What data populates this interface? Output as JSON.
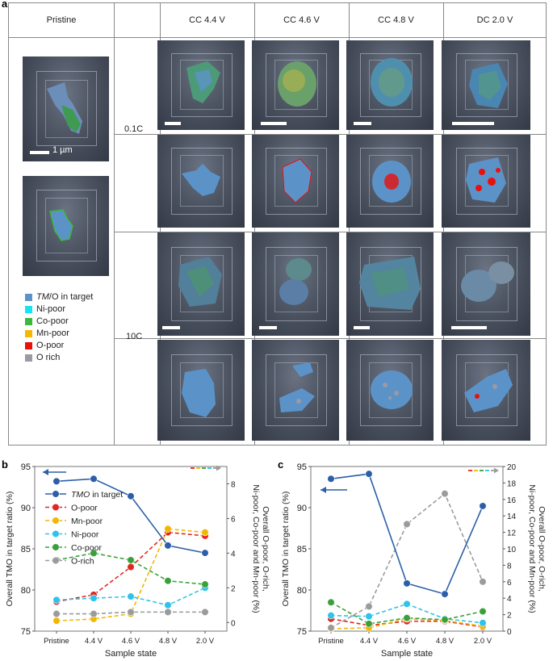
{
  "panel_a": {
    "letter": "a",
    "columns": [
      "Pristine",
      "CC 4.4 V",
      "CC 4.6 V",
      "CC 4.8 V",
      "DC 2.0 V"
    ],
    "rows": [
      "0.1C",
      "10C"
    ],
    "scale_label": "1 µm",
    "legend": [
      {
        "prefix": "TM",
        "label": "/O in target",
        "color": "#5b93c9"
      },
      {
        "prefix": "",
        "label": "Ni-poor",
        "color": "#17e4f2"
      },
      {
        "prefix": "",
        "label": "Co-poor",
        "color": "#3cb83c"
      },
      {
        "prefix": "",
        "label": "Mn-poor",
        "color": "#f5b800"
      },
      {
        "prefix": "",
        "label": "O-poor",
        "color": "#e8100c"
      },
      {
        "prefix": "",
        "label": "O rich",
        "color": "#9a9aa4"
      }
    ]
  },
  "chart_data": [
    {
      "panel": "b",
      "type": "line",
      "categories": [
        "Pristine",
        "4.4 V",
        "4.6 V",
        "4.8 V",
        "2.0 V"
      ],
      "xlabel": "Sample state",
      "ylabel_left": "Overall TMO in target ratio (%)",
      "ylabel_right": "Overall O-poor, O-rich, Ni-poor, Co-poor and Mn-poor (%)",
      "ylim_left": [
        75,
        95
      ],
      "yticks_left": [
        75,
        80,
        85,
        90,
        95
      ],
      "ylim_right": [
        -0.5,
        9
      ],
      "yticks_right": [
        0,
        2,
        4,
        6,
        8
      ],
      "series": [
        {
          "name": "TMO in target",
          "axis": "left",
          "color": "#2c5fa8",
          "dash": "",
          "values": [
            93.2,
            93.5,
            91.4,
            85.4,
            84.5
          ]
        },
        {
          "name": "O-poor",
          "axis": "right",
          "color": "#e3261f",
          "dash": "5,3",
          "values": [
            1.2,
            1.6,
            3.2,
            5.2,
            5.0
          ]
        },
        {
          "name": "Mn-poor",
          "axis": "right",
          "color": "#f2b705",
          "dash": "5,3",
          "values": [
            0.1,
            0.2,
            0.5,
            5.4,
            5.2
          ]
        },
        {
          "name": "Ni-poor",
          "axis": "right",
          "color": "#2ec3e8",
          "dash": "5,3",
          "values": [
            1.3,
            1.4,
            1.5,
            1.0,
            2.0
          ]
        },
        {
          "name": "Co-poor",
          "axis": "right",
          "color": "#3aa13a",
          "dash": "5,3",
          "values": [
            3.6,
            4.0,
            3.6,
            2.4,
            2.2
          ]
        },
        {
          "name": "O-rich",
          "axis": "right",
          "color": "#9b9b9b",
          "dash": "5,3",
          "values": [
            0.5,
            0.5,
            0.6,
            0.6,
            0.6
          ]
        }
      ]
    },
    {
      "panel": "c",
      "type": "line",
      "categories": [
        "Pristine",
        "4.4 V",
        "4.6 V",
        "4.8 V",
        "2.0 V"
      ],
      "xlabel": "Sample state",
      "ylabel_left": "Overall TMO in target ratio (%)",
      "ylabel_right": "Overall O-poor, O-rich, Ni-poor, Co-poor and Mn-poor (%)",
      "ylim_left": [
        75,
        95
      ],
      "yticks_left": [
        75,
        80,
        85,
        90,
        95
      ],
      "ylim_right": [
        0,
        20
      ],
      "yticks_right": [
        0,
        2,
        4,
        6,
        8,
        10,
        12,
        14,
        16,
        18,
        20
      ],
      "series": [
        {
          "name": "TMO in target",
          "axis": "left",
          "color": "#2c5fa8",
          "dash": "",
          "values": [
            93.5,
            94.1,
            80.8,
            79.5,
            90.2
          ]
        },
        {
          "name": "O-poor",
          "axis": "right",
          "color": "#e3261f",
          "dash": "5,3",
          "values": [
            1.5,
            0.7,
            1.2,
            1.2,
            0.5
          ]
        },
        {
          "name": "Mn-poor",
          "axis": "right",
          "color": "#f2b705",
          "dash": "5,3",
          "values": [
            0.3,
            0.4,
            1.5,
            1.3,
            0.6
          ]
        },
        {
          "name": "Ni-poor",
          "axis": "right",
          "color": "#2ec3e8",
          "dash": "5,3",
          "values": [
            1.9,
            1.8,
            3.3,
            1.5,
            1.0
          ]
        },
        {
          "name": "Co-poor",
          "axis": "right",
          "color": "#3aa13a",
          "dash": "5,3",
          "values": [
            3.5,
            0.9,
            1.6,
            1.4,
            2.4
          ]
        },
        {
          "name": "O-rich",
          "axis": "right",
          "color": "#9b9b9b",
          "dash": "5,3",
          "values": [
            0.4,
            3.0,
            13.0,
            16.7,
            6.0
          ]
        }
      ]
    }
  ]
}
